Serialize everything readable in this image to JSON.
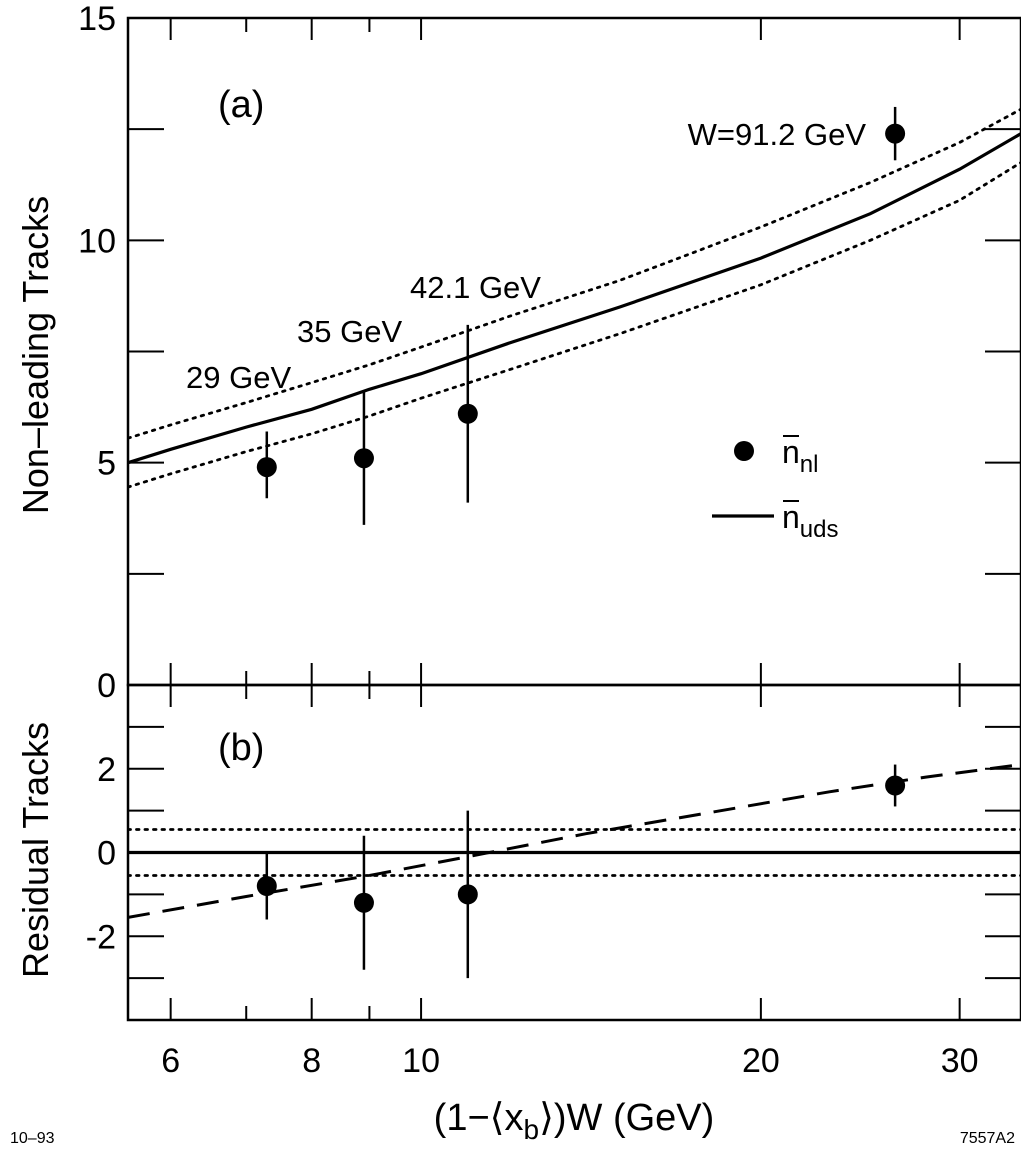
{
  "chart_data": [
    {
      "panel": "(a)",
      "type": "scatter",
      "ylabel": "Non–leading Tracks",
      "xscale": "log",
      "xlim": [
        5.5,
        34
      ],
      "ylim": [
        0,
        15
      ],
      "yticks": [
        0,
        5,
        10,
        15
      ],
      "x_major_ticks": [
        6,
        8,
        10,
        20,
        30
      ],
      "grid": false,
      "legend": {
        "position": "right",
        "entries": [
          {
            "label_main": "n",
            "label_sub": "nl",
            "marker": "dot"
          },
          {
            "label_main": "n",
            "label_sub": "uds",
            "marker": "solid-line"
          }
        ]
      },
      "series": [
        {
          "name": "n_nl",
          "kind": "points",
          "labels": [
            "29 GeV",
            "35 GeV",
            "42.1 GeV",
            "W=91.2 GeV"
          ],
          "x": [
            7.3,
            8.9,
            11.0,
            26.3
          ],
          "y": [
            4.9,
            5.1,
            6.1,
            12.4
          ],
          "yerr_low": [
            0.7,
            1.5,
            2.0,
            0.6
          ],
          "yerr_high": [
            0.8,
            1.5,
            2.0,
            0.6
          ]
        },
        {
          "name": "n_uds",
          "kind": "line",
          "x": [
            5.5,
            6,
            7,
            8,
            9,
            10,
            12,
            15,
            20,
            25,
            30,
            34
          ],
          "y": [
            5.0,
            5.3,
            5.8,
            6.2,
            6.65,
            7.0,
            7.7,
            8.5,
            9.6,
            10.6,
            11.6,
            12.4
          ]
        },
        {
          "name": "n_uds upper band",
          "kind": "dotted-line",
          "x": [
            5.5,
            6,
            7,
            8,
            9,
            10,
            12,
            15,
            20,
            25,
            30,
            34
          ],
          "y": [
            5.55,
            5.85,
            6.35,
            6.8,
            7.2,
            7.6,
            8.3,
            9.1,
            10.3,
            11.3,
            12.2,
            12.95
          ]
        },
        {
          "name": "n_uds lower band",
          "kind": "dotted-line",
          "x": [
            5.5,
            6,
            7,
            8,
            9,
            10,
            12,
            15,
            20,
            25,
            30,
            34
          ],
          "y": [
            4.45,
            4.75,
            5.25,
            5.65,
            6.05,
            6.45,
            7.1,
            7.9,
            9.0,
            10.0,
            10.9,
            11.75
          ]
        }
      ]
    },
    {
      "panel": "(b)",
      "type": "scatter",
      "ylabel": "Residual Tracks",
      "xlabel_main": "(1−⟨x",
      "xlabel_sub": "b",
      "xlabel_rest": "⟩)W   (GeV)",
      "xscale": "log",
      "xlim": [
        5.5,
        34
      ],
      "ylim": [
        -4,
        4
      ],
      "yticks": [
        -2,
        0,
        2
      ],
      "x_major_ticks": [
        6,
        8,
        10,
        20,
        30
      ],
      "grid": false,
      "series": [
        {
          "name": "residual",
          "kind": "points",
          "x": [
            7.3,
            8.9,
            11.0,
            26.3
          ],
          "y": [
            -0.8,
            -1.2,
            -1.0,
            1.6
          ],
          "yerr_low": [
            0.8,
            1.6,
            2.0,
            0.5
          ],
          "yerr_high": [
            0.8,
            1.6,
            2.0,
            0.5
          ]
        },
        {
          "name": "zero",
          "kind": "line",
          "x": [
            5.5,
            34
          ],
          "y": [
            0,
            0
          ]
        },
        {
          "name": "band upper",
          "kind": "dotted-line",
          "x": [
            5.5,
            34
          ],
          "y": [
            0.55,
            0.55
          ]
        },
        {
          "name": "band lower",
          "kind": "dotted-line",
          "x": [
            5.5,
            34
          ],
          "y": [
            -0.55,
            -0.55
          ]
        },
        {
          "name": "trend",
          "kind": "dashed-line",
          "x": [
            5.5,
            7,
            9,
            11,
            14,
            18,
            23,
            28,
            34
          ],
          "y": [
            -1.55,
            -1.05,
            -0.55,
            -0.1,
            0.45,
            0.95,
            1.45,
            1.8,
            2.1
          ]
        }
      ]
    }
  ],
  "footer": {
    "left_code": "10–93",
    "right_code": "7557A2"
  }
}
